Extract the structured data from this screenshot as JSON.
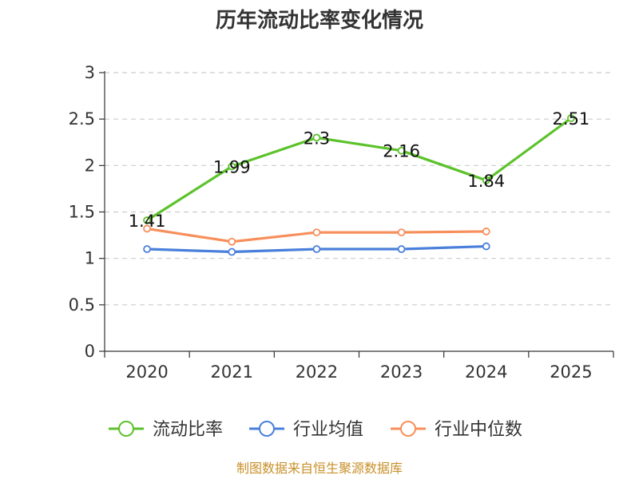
{
  "chart_data": {
    "type": "line",
    "title": "历年流动比率变化情况",
    "categories": [
      "2020",
      "2021",
      "2022",
      "2023",
      "2024",
      "2025"
    ],
    "ylim": [
      0,
      3
    ],
    "yticks": [
      "0",
      "0.5",
      "1",
      "1.5",
      "2",
      "2.5",
      "3"
    ],
    "grid": true,
    "legend_position": "bottom",
    "series": [
      {
        "name": "流动比率",
        "color": "#5cc22b",
        "values": [
          1.41,
          1.99,
          2.3,
          2.16,
          1.84,
          2.51
        ],
        "labels": [
          "1.41",
          "1.99",
          "2.3",
          "2.16",
          "1.84",
          "2.51"
        ]
      },
      {
        "name": "行业均值",
        "color": "#4a7fdb",
        "values": [
          1.1,
          1.07,
          1.1,
          1.1,
          1.13,
          null
        ]
      },
      {
        "name": "行业中位数",
        "color": "#f78f5c",
        "values": [
          1.32,
          1.18,
          1.28,
          1.28,
          1.29,
          null
        ]
      }
    ],
    "source": "制图数据来自恒生聚源数据库"
  }
}
